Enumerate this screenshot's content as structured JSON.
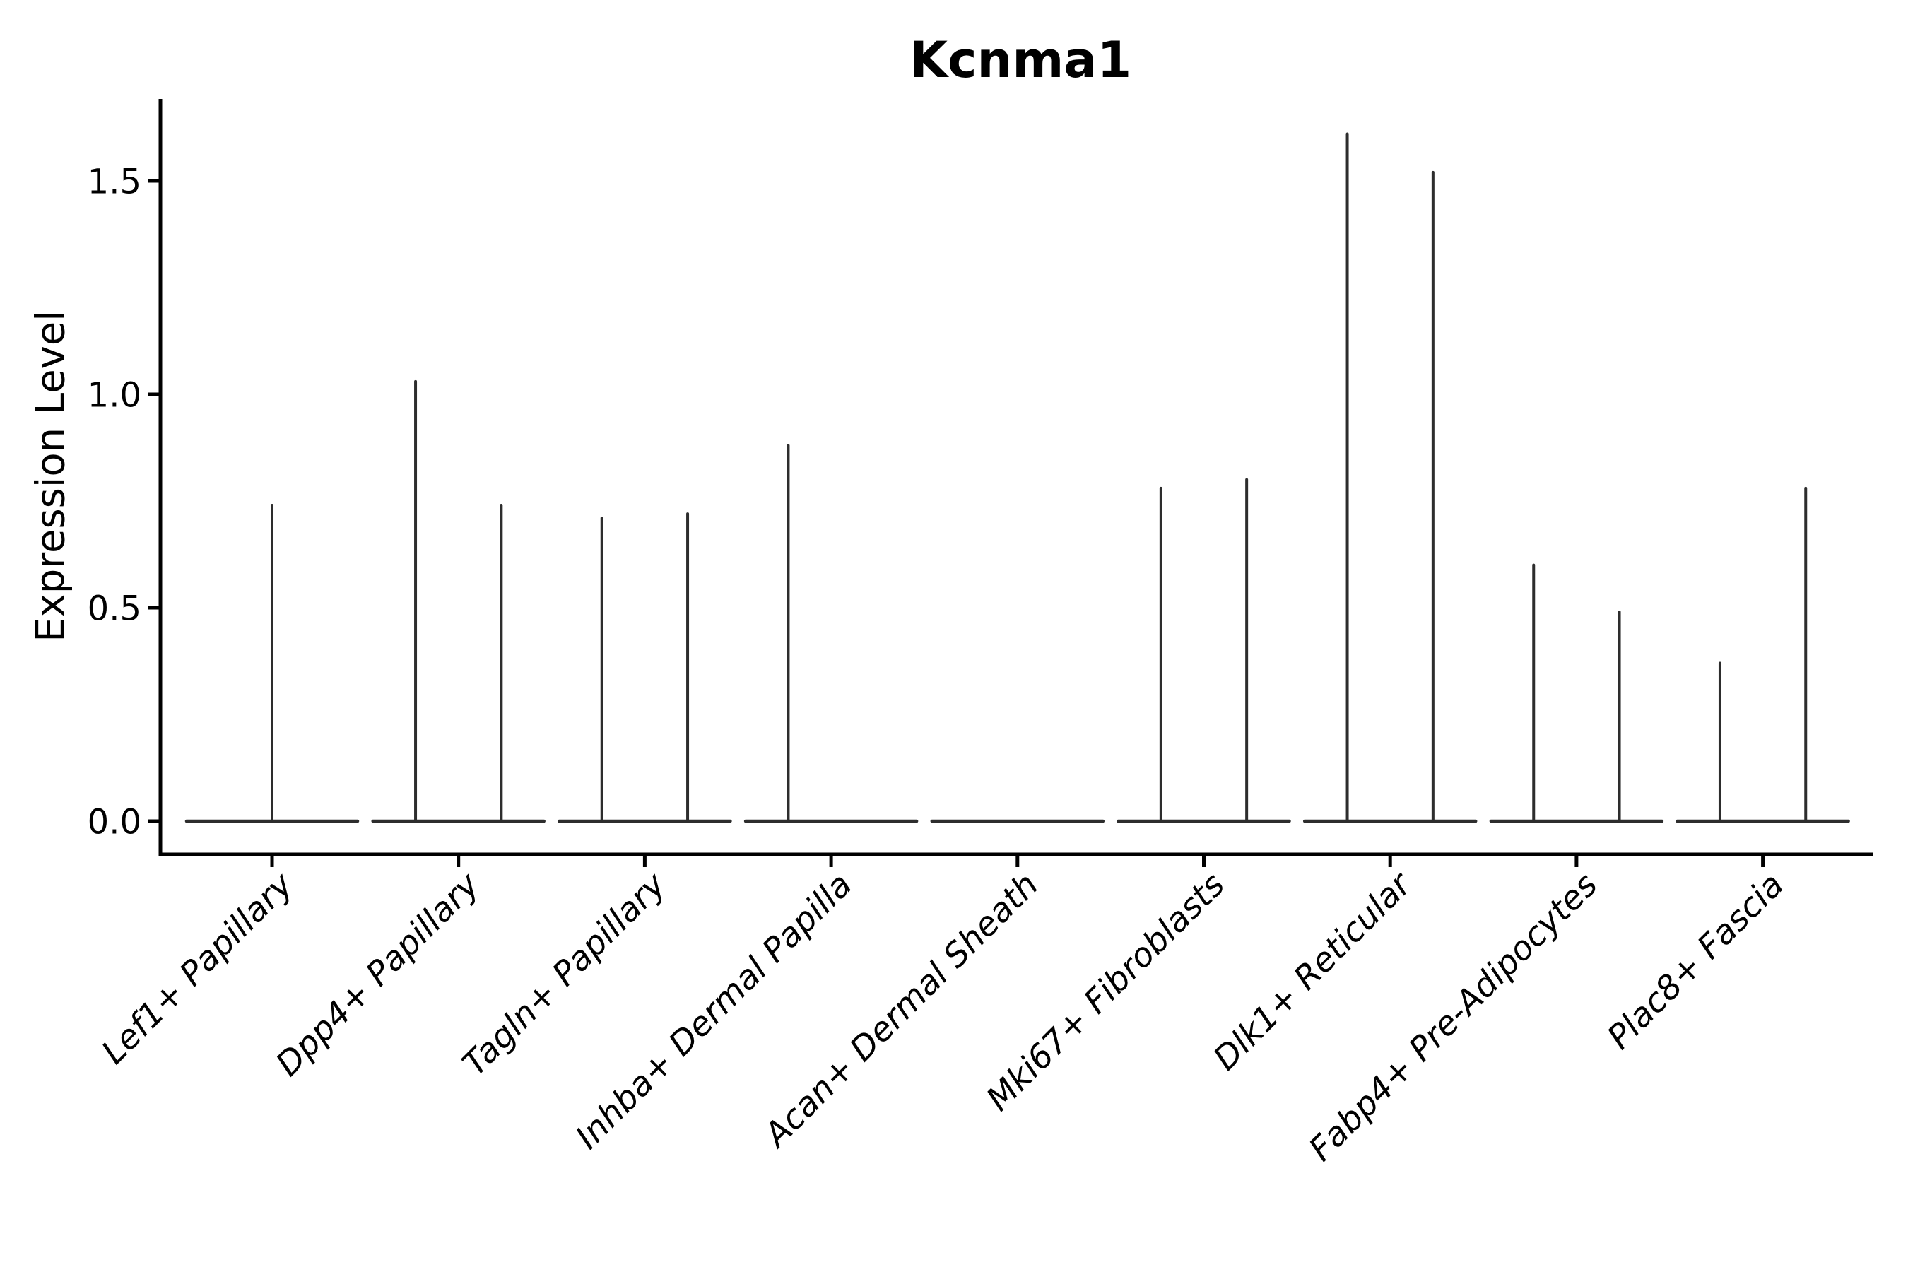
{
  "chart_data": {
    "type": "violin",
    "title": "Kcnma1",
    "ylabel": "Expression Level",
    "xlabel": "",
    "categories": [
      "Lef1+ Papillary",
      "Dpp4+ Papillary",
      "Tagln+ Papillary",
      "Inhba+ Dermal Papilla",
      "Acan+ Dermal Sheath",
      "Mki67+ Fibroblasts",
      "Dlk1+ Reticular",
      "Fabp4+ Pre-Adipocytes",
      "Plac8+ Fascia"
    ],
    "violins": [
      {
        "category": "Lef1+ Papillary",
        "baseline_value": 0.0,
        "spikes": [
          {
            "offset_frac": 0.0,
            "max": 0.74
          }
        ]
      },
      {
        "category": "Dpp4+ Papillary",
        "baseline_value": 0.0,
        "spikes": [
          {
            "offset_frac": -0.23,
            "max": 1.03
          },
          {
            "offset_frac": 0.23,
            "max": 0.74
          }
        ]
      },
      {
        "category": "Tagln+ Papillary",
        "baseline_value": 0.0,
        "spikes": [
          {
            "offset_frac": -0.23,
            "max": 0.71
          },
          {
            "offset_frac": 0.23,
            "max": 0.72
          }
        ]
      },
      {
        "category": "Inhba+ Dermal Papilla",
        "baseline_value": 0.0,
        "spikes": [
          {
            "offset_frac": -0.23,
            "max": 0.88
          }
        ]
      },
      {
        "category": "Acan+ Dermal Sheath",
        "baseline_value": 0.0,
        "spikes": []
      },
      {
        "category": "Mki67+ Fibroblasts",
        "baseline_value": 0.0,
        "spikes": [
          {
            "offset_frac": -0.23,
            "max": 0.78
          },
          {
            "offset_frac": 0.23,
            "max": 0.8
          }
        ]
      },
      {
        "category": "Dlk1+ Reticular",
        "baseline_value": 0.0,
        "spikes": [
          {
            "offset_frac": -0.23,
            "max": 1.61
          },
          {
            "offset_frac": 0.23,
            "max": 1.52
          }
        ]
      },
      {
        "category": "Fabp4+ Pre-Adipocytes",
        "baseline_value": 0.0,
        "spikes": [
          {
            "offset_frac": -0.23,
            "max": 0.6
          },
          {
            "offset_frac": 0.23,
            "max": 0.49
          }
        ]
      },
      {
        "category": "Plac8+ Fascia",
        "baseline_value": 0.0,
        "spikes": [
          {
            "offset_frac": -0.23,
            "max": 0.37
          },
          {
            "offset_frac": 0.23,
            "max": 0.78
          }
        ]
      }
    ],
    "yticks": [
      0.0,
      0.5,
      1.0,
      1.5
    ],
    "ytick_labels": [
      "0.0",
      "0.5",
      "1.0",
      "1.5"
    ],
    "ylim": [
      -0.078,
      1.69
    ],
    "grid": false,
    "legend": null,
    "x_label_rotation_deg": 45,
    "x_labels_italic": true,
    "colors": {
      "violin_line": "#2d2d2d",
      "axis": "#000000",
      "text": "#000000",
      "background": "#ffffff"
    }
  }
}
